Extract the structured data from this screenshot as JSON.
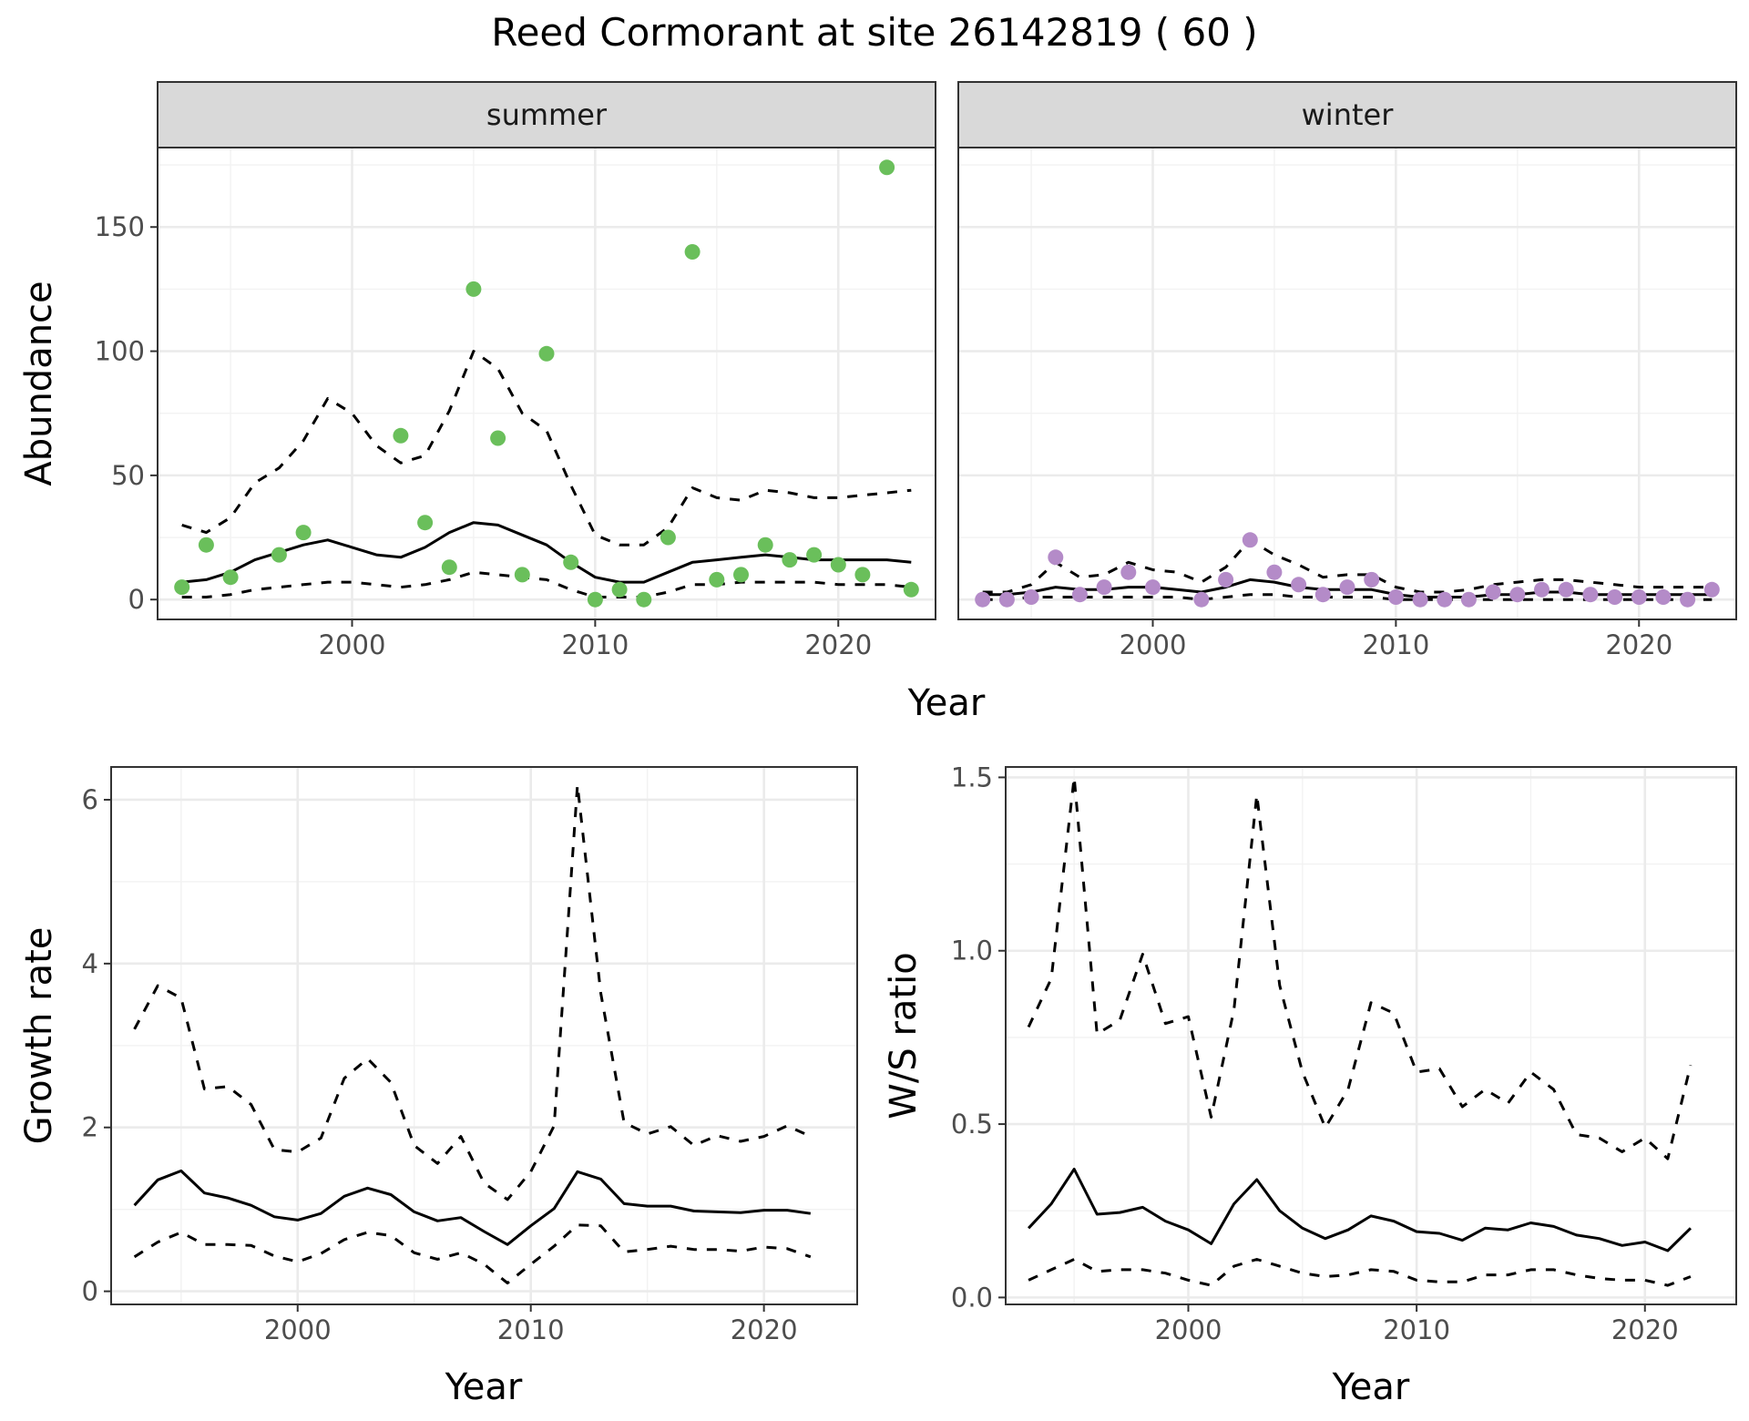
{
  "title": "Reed Cormorant at site 26142819 ( 60 )",
  "colors": {
    "summer": "#6abf5b",
    "winter": "#b48bc8",
    "line": "#000000"
  },
  "chart_data": [
    {
      "type": "line",
      "facet_labels": [
        "summer",
        "winter"
      ],
      "xlabel": "Year",
      "ylabel": "Abundance",
      "xlim": [
        1992,
        2024
      ],
      "ylim": [
        -8,
        182
      ],
      "xticks": [
        2000,
        2010,
        2020
      ],
      "yticks": [
        0,
        50,
        100,
        150
      ],
      "grid": true,
      "panels": [
        {
          "name": "summer",
          "x": [
            1993,
            1994,
            1995,
            1996,
            1997,
            1998,
            1999,
            2000,
            2001,
            2002,
            2003,
            2004,
            2005,
            2006,
            2007,
            2008,
            2009,
            2010,
            2011,
            2012,
            2013,
            2014,
            2015,
            2016,
            2017,
            2018,
            2019,
            2020,
            2021,
            2022,
            2023
          ],
          "points": [
            5,
            22,
            9,
            null,
            18,
            27,
            null,
            null,
            null,
            66,
            31,
            13,
            125,
            65,
            10,
            99,
            15,
            0,
            4,
            0,
            25,
            140,
            8,
            10,
            22,
            16,
            18,
            14,
            10,
            174,
            4
          ],
          "estimate": [
            7,
            8,
            11,
            16,
            19,
            22,
            24,
            21,
            18,
            17,
            21,
            27,
            31,
            30,
            26,
            22,
            15,
            9,
            7,
            7,
            11,
            15,
            16,
            17,
            18,
            17,
            16,
            16,
            16,
            16,
            15
          ],
          "lower": [
            1,
            1,
            2,
            4,
            5,
            6,
            7,
            7,
            6,
            5,
            6,
            8,
            11,
            10,
            9,
            8,
            4,
            1,
            1,
            1,
            3,
            6,
            6,
            7,
            7,
            7,
            7,
            6,
            6,
            6,
            5
          ],
          "upper": [
            30,
            27,
            33,
            47,
            53,
            64,
            81,
            75,
            62,
            55,
            58,
            76,
            100,
            93,
            75,
            68,
            46,
            26,
            22,
            22,
            29,
            45,
            41,
            40,
            44,
            43,
            41,
            41,
            42,
            43,
            44
          ]
        },
        {
          "name": "winter",
          "x": [
            1993,
            1994,
            1995,
            1996,
            1997,
            1998,
            1999,
            2000,
            2001,
            2002,
            2003,
            2004,
            2005,
            2006,
            2007,
            2008,
            2009,
            2010,
            2011,
            2012,
            2013,
            2014,
            2015,
            2016,
            2017,
            2018,
            2019,
            2020,
            2021,
            2022,
            2023
          ],
          "points": [
            0,
            0,
            1,
            17,
            2,
            5,
            11,
            5,
            null,
            0,
            8,
            24,
            11,
            6,
            2,
            5,
            8,
            1,
            0,
            0,
            0,
            3,
            2,
            4,
            4,
            2,
            1,
            1,
            1,
            0,
            4
          ],
          "estimate": [
            2,
            2,
            3,
            5,
            4,
            4,
            5,
            5,
            4,
            3,
            5,
            8,
            7,
            5,
            4,
            4,
            4,
            2,
            1,
            1,
            1,
            2,
            2,
            3,
            3,
            2,
            2,
            2,
            2,
            2,
            2
          ],
          "lower": [
            0,
            0,
            1,
            1,
            1,
            1,
            1,
            1,
            1,
            0,
            1,
            2,
            2,
            1,
            1,
            1,
            1,
            0,
            0,
            0,
            0,
            0,
            0,
            0,
            0,
            0,
            0,
            0,
            0,
            0,
            0
          ],
          "upper": [
            3,
            3,
            6,
            15,
            9,
            10,
            15,
            12,
            11,
            7,
            13,
            24,
            18,
            14,
            9,
            10,
            10,
            5,
            3,
            3,
            4,
            6,
            7,
            8,
            8,
            7,
            6,
            5,
            5,
            5,
            5
          ]
        }
      ]
    },
    {
      "type": "line",
      "xlabel": "Year",
      "ylabel": "Growth rate",
      "xlim": [
        1992,
        2024
      ],
      "ylim": [
        -0.16,
        6.4
      ],
      "xticks": [
        2000,
        2010,
        2020
      ],
      "yticks": [
        0,
        2,
        4,
        6
      ],
      "grid": true,
      "x": [
        1993,
        1994,
        1995,
        1996,
        1997,
        1998,
        1999,
        2000,
        2001,
        2002,
        2003,
        2004,
        2005,
        2006,
        2007,
        2008,
        2009,
        2010,
        2011,
        2012,
        2013,
        2014,
        2015,
        2016,
        2017,
        2018,
        2019,
        2020,
        2021,
        2022
      ],
      "estimate": [
        1.05,
        1.36,
        1.47,
        1.2,
        1.14,
        1.05,
        0.91,
        0.87,
        0.95,
        1.16,
        1.26,
        1.18,
        0.97,
        0.86,
        0.9,
        0.73,
        0.57,
        0.8,
        1.01,
        1.46,
        1.37,
        1.07,
        1.04,
        1.04,
        0.98,
        0.97,
        0.96,
        0.99,
        0.99,
        0.95
      ],
      "lower": [
        0.42,
        0.6,
        0.72,
        0.57,
        0.57,
        0.56,
        0.43,
        0.36,
        0.46,
        0.63,
        0.72,
        0.68,
        0.47,
        0.39,
        0.47,
        0.33,
        0.1,
        0.33,
        0.55,
        0.81,
        0.8,
        0.48,
        0.51,
        0.55,
        0.51,
        0.51,
        0.49,
        0.54,
        0.52,
        0.42
      ],
      "upper": [
        3.2,
        3.73,
        3.58,
        2.47,
        2.5,
        2.28,
        1.73,
        1.7,
        1.87,
        2.6,
        2.84,
        2.55,
        1.78,
        1.56,
        1.89,
        1.32,
        1.12,
        1.46,
        2.02,
        6.18,
        3.64,
        2.06,
        1.92,
        2.01,
        1.78,
        1.9,
        1.83,
        1.89,
        2.02,
        1.89
      ]
    },
    {
      "type": "line",
      "xlabel": "Year",
      "ylabel": "W/S ratio",
      "xlim": [
        1992,
        2024
      ],
      "ylim": [
        -0.02,
        1.53
      ],
      "xticks": [
        2000,
        2010,
        2020
      ],
      "yticks": [
        0.0,
        0.5,
        1.0,
        1.5
      ],
      "ytick_labels": [
        "0.0",
        "0.5",
        "1.0",
        "1.5"
      ],
      "grid": true,
      "x": [
        1993,
        1994,
        1995,
        1996,
        1997,
        1998,
        1999,
        2000,
        2001,
        2002,
        2003,
        2004,
        2005,
        2006,
        2007,
        2008,
        2009,
        2010,
        2011,
        2012,
        2013,
        2014,
        2015,
        2016,
        2017,
        2018,
        2019,
        2020,
        2021,
        2022
      ],
      "estimate": [
        0.2,
        0.27,
        0.37,
        0.24,
        0.245,
        0.26,
        0.22,
        0.195,
        0.155,
        0.27,
        0.34,
        0.25,
        0.2,
        0.17,
        0.195,
        0.235,
        0.22,
        0.19,
        0.185,
        0.165,
        0.2,
        0.195,
        0.215,
        0.205,
        0.18,
        0.17,
        0.15,
        0.16,
        0.135,
        0.2
      ],
      "lower": [
        0.05,
        0.08,
        0.11,
        0.075,
        0.08,
        0.08,
        0.07,
        0.05,
        0.035,
        0.09,
        0.11,
        0.09,
        0.07,
        0.06,
        0.065,
        0.08,
        0.075,
        0.05,
        0.045,
        0.045,
        0.065,
        0.065,
        0.08,
        0.08,
        0.065,
        0.055,
        0.05,
        0.05,
        0.035,
        0.06
      ],
      "upper": [
        0.78,
        0.92,
        1.5,
        0.76,
        0.8,
        0.99,
        0.79,
        0.81,
        0.52,
        0.83,
        1.45,
        0.9,
        0.65,
        0.49,
        0.6,
        0.85,
        0.82,
        0.65,
        0.66,
        0.55,
        0.6,
        0.56,
        0.65,
        0.6,
        0.47,
        0.46,
        0.42,
        0.46,
        0.4,
        0.67
      ]
    }
  ]
}
